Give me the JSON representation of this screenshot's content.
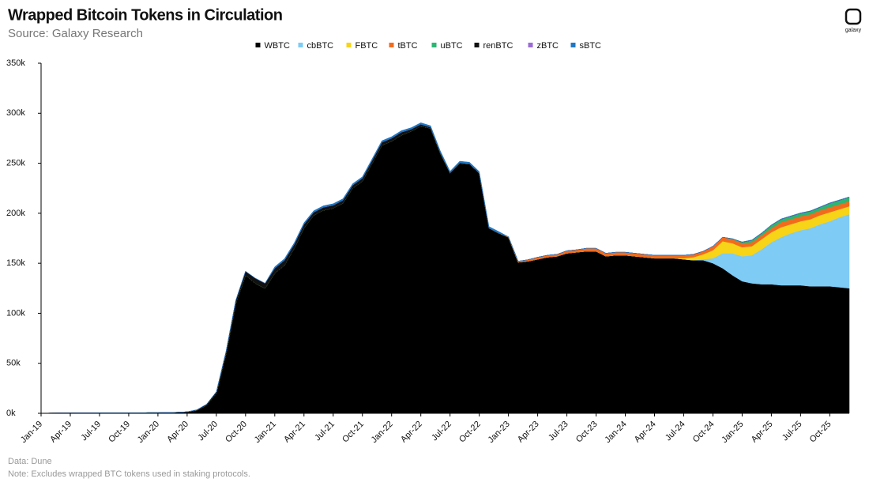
{
  "chart_data": {
    "type": "stacked-area",
    "title": "Wrapped Bitcoin Tokens in Circulation",
    "subtitle": "Source: Galaxy Research",
    "logo_text": "galaxy",
    "notes": [
      "Data: Dune",
      "Note: Excludes wrapped BTC tokens used in staking protocols."
    ],
    "categories": [
      "Jan-19",
      null,
      null,
      "Apr-19",
      null,
      null,
      "Jul-19",
      null,
      null,
      "Oct-19",
      null,
      null,
      "Jan-20",
      null,
      null,
      "Apr-20",
      null,
      null,
      "Jul-20",
      null,
      null,
      "Oct-20",
      null,
      null,
      "Jan-21",
      null,
      null,
      "Apr-21",
      null,
      null,
      "Jul-21",
      null,
      null,
      "Oct-21",
      null,
      null,
      "Jan-22",
      null,
      null,
      "Apr-22",
      null,
      null,
      "Jul-22",
      null,
      null,
      "Oct-22",
      null,
      null,
      "Jan-23",
      null,
      null,
      "Apr-23",
      null,
      null,
      "Jul-23",
      null,
      null,
      "Oct-23",
      null,
      null,
      "Jan-24",
      null,
      null,
      "Apr-24",
      null,
      null,
      "Jul-24",
      null,
      null,
      "Oct-24",
      null,
      null,
      "Jan-25",
      null,
      null,
      "Apr-25",
      null,
      null,
      "Jul-25",
      null,
      null,
      "Oct-25",
      null,
      null
    ],
    "ylim": [
      0,
      350000
    ],
    "yticks": [
      {
        "value": 0,
        "label": "0k"
      },
      {
        "value": 50000,
        "label": "50k"
      },
      {
        "value": 100000,
        "label": "100k"
      },
      {
        "value": 150000,
        "label": "150k"
      },
      {
        "value": 200000,
        "label": "200k"
      },
      {
        "value": 250000,
        "label": "250k"
      },
      {
        "value": 300000,
        "label": "300k"
      },
      {
        "value": 350000,
        "label": "350k"
      }
    ],
    "grid": false,
    "legend": "top",
    "series": [
      {
        "name": "WBTC",
        "color": "#000000",
        "values": [
          100,
          200,
          300,
          300,
          400,
          400,
          500,
          500,
          500,
          500,
          500,
          600,
          600,
          800,
          1000,
          1500,
          3000,
          8000,
          20000,
          60000,
          110000,
          138000,
          130000,
          125000,
          140000,
          148000,
          165000,
          185000,
          198000,
          203000,
          205000,
          210000,
          225000,
          232000,
          250000,
          268000,
          272000,
          278000,
          282000,
          287000,
          285000,
          260000,
          240000,
          250000,
          249000,
          240000,
          185000,
          180000,
          176000,
          151000,
          152000,
          154000,
          156000,
          157000,
          160000,
          161000,
          162000,
          162000,
          157000,
          158000,
          158000,
          157000,
          156000,
          155000,
          155000,
          155000,
          154000,
          153000,
          153000,
          150000,
          145000,
          138000,
          132000,
          130000,
          129000,
          129000,
          128000,
          128000,
          128000,
          127000,
          127000,
          127000,
          126000,
          125000
        ]
      },
      {
        "name": "cbBTC",
        "color": "#7ecbf5",
        "values": [
          0,
          0,
          0,
          0,
          0,
          0,
          0,
          0,
          0,
          0,
          0,
          0,
          0,
          0,
          0,
          0,
          0,
          0,
          0,
          0,
          0,
          0,
          0,
          0,
          0,
          0,
          0,
          0,
          0,
          0,
          0,
          0,
          0,
          0,
          0,
          0,
          0,
          0,
          0,
          0,
          0,
          0,
          0,
          0,
          0,
          0,
          0,
          0,
          0,
          0,
          0,
          0,
          0,
          0,
          0,
          0,
          0,
          0,
          0,
          0,
          0,
          0,
          0,
          0,
          0,
          0,
          0,
          0,
          1000,
          5000,
          15000,
          22000,
          25000,
          28000,
          35000,
          42000,
          48000,
          52000,
          55000,
          58000,
          62000,
          65000,
          70000,
          74000
        ]
      },
      {
        "name": "FBTC",
        "color": "#f7d417",
        "values": [
          0,
          0,
          0,
          0,
          0,
          0,
          0,
          0,
          0,
          0,
          0,
          0,
          0,
          0,
          0,
          0,
          0,
          0,
          0,
          0,
          0,
          0,
          0,
          0,
          0,
          0,
          0,
          0,
          0,
          0,
          0,
          0,
          0,
          0,
          0,
          0,
          0,
          0,
          0,
          0,
          0,
          0,
          0,
          0,
          0,
          0,
          0,
          0,
          0,
          0,
          0,
          0,
          0,
          0,
          0,
          0,
          0,
          0,
          0,
          0,
          0,
          0,
          0,
          0,
          0,
          0,
          1000,
          3000,
          5000,
          8000,
          12000,
          10000,
          9000,
          9000,
          10000,
          10000,
          10000,
          9000,
          9000,
          9000,
          9000,
          9000,
          8000,
          8000
        ]
      },
      {
        "name": "tBTC",
        "color": "#f26b1d",
        "values": [
          0,
          0,
          0,
          0,
          0,
          0,
          0,
          0,
          0,
          0,
          0,
          0,
          0,
          0,
          0,
          0,
          0,
          0,
          0,
          0,
          0,
          0,
          0,
          0,
          0,
          0,
          0,
          0,
          0,
          0,
          0,
          0,
          0,
          0,
          0,
          0,
          0,
          0,
          0,
          0,
          0,
          0,
          0,
          0,
          0,
          0,
          0,
          0,
          500,
          1000,
          1500,
          2000,
          2000,
          2000,
          2500,
          2500,
          3000,
          3000,
          3000,
          3000,
          3000,
          3000,
          3000,
          3000,
          3000,
          3000,
          3000,
          3000,
          3000,
          4000,
          4000,
          4000,
          4000,
          4000,
          4000,
          4000,
          5000,
          5000,
          5000,
          5000,
          5000,
          5000,
          5000,
          5000
        ]
      },
      {
        "name": "uBTC",
        "color": "#2bb673",
        "values": [
          0,
          0,
          0,
          0,
          0,
          0,
          0,
          0,
          0,
          0,
          0,
          0,
          0,
          0,
          0,
          0,
          0,
          0,
          0,
          0,
          0,
          0,
          0,
          0,
          0,
          0,
          0,
          0,
          0,
          0,
          0,
          0,
          0,
          0,
          0,
          0,
          0,
          0,
          0,
          0,
          0,
          0,
          0,
          0,
          0,
          0,
          0,
          0,
          0,
          0,
          0,
          0,
          0,
          0,
          0,
          0,
          0,
          0,
          0,
          0,
          0,
          0,
          0,
          0,
          0,
          0,
          0,
          0,
          0,
          0,
          0,
          500,
          1000,
          2000,
          2000,
          3000,
          3000,
          3000,
          3000,
          3000,
          3000,
          4000,
          4000,
          4000
        ]
      },
      {
        "name": "renBTC",
        "color": "#111111",
        "values": [
          0,
          0,
          0,
          0,
          0,
          0,
          0,
          0,
          0,
          0,
          0,
          0,
          0,
          0,
          0,
          0,
          500,
          1000,
          1500,
          2000,
          3000,
          4000,
          5000,
          5000,
          5000,
          5000,
          4000,
          4000,
          3000,
          3000,
          3000,
          3000,
          3000,
          3000,
          3000,
          3000,
          3000,
          3000,
          2000,
          2000,
          1000,
          1000,
          500,
          500,
          500,
          300,
          200,
          200,
          0,
          0,
          0,
          0,
          0,
          0,
          0,
          0,
          0,
          0,
          0,
          0,
          0,
          0,
          0,
          0,
          0,
          0,
          0,
          0,
          0,
          0,
          0,
          0,
          0,
          0,
          0,
          0,
          0,
          0,
          0,
          0,
          0,
          0,
          0,
          0
        ]
      },
      {
        "name": "zBTC",
        "color": "#9b6bd6",
        "values": [
          0,
          0,
          0,
          0,
          0,
          0,
          0,
          0,
          0,
          0,
          0,
          0,
          0,
          0,
          0,
          0,
          0,
          0,
          0,
          0,
          0,
          0,
          0,
          0,
          0,
          0,
          0,
          0,
          0,
          0,
          0,
          0,
          0,
          0,
          0,
          0,
          0,
          0,
          0,
          0,
          0,
          0,
          0,
          0,
          0,
          0,
          0,
          0,
          0,
          0,
          0,
          0,
          0,
          0,
          0,
          0,
          0,
          0,
          0,
          0,
          0,
          0,
          0,
          0,
          0,
          0,
          0,
          0,
          0,
          0,
          0,
          0,
          300,
          300,
          300,
          300,
          300,
          300,
          300,
          300,
          300,
          300,
          300,
          300
        ]
      },
      {
        "name": "sBTC",
        "color": "#1f77c4",
        "values": [
          0,
          0,
          0,
          0,
          0,
          0,
          0,
          0,
          0,
          0,
          0,
          0,
          0,
          0,
          0,
          0,
          0,
          0,
          0,
          0,
          0,
          0,
          0,
          0,
          1500,
          1500,
          1500,
          1500,
          1500,
          1500,
          1500,
          1500,
          1500,
          1500,
          1500,
          1500,
          1500,
          1500,
          1500,
          1500,
          1500,
          1500,
          1500,
          1500,
          1500,
          1500,
          1500,
          1500,
          0,
          0,
          0,
          0,
          0,
          0,
          0,
          0,
          0,
          0,
          0,
          0,
          0,
          0,
          0,
          0,
          0,
          0,
          0,
          0,
          0,
          0,
          0,
          0,
          0,
          0,
          0,
          0,
          0,
          0,
          0,
          0,
          0,
          0,
          0,
          0
        ]
      }
    ]
  }
}
